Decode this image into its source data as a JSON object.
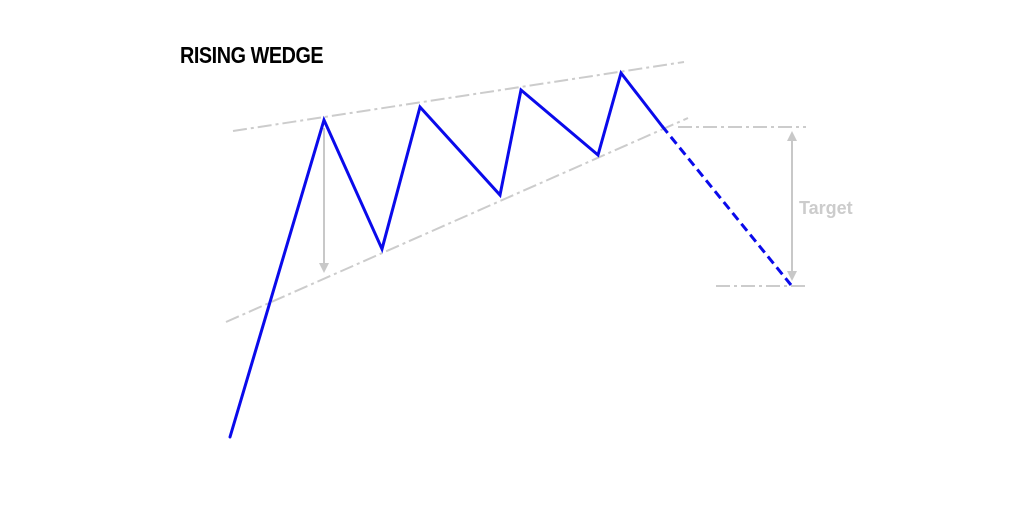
{
  "diagram": {
    "title": "RISING WEDGE",
    "target_label": "Target",
    "colors": {
      "price_line": "#0a0aeb",
      "trendline": "#cccccc",
      "arrow": "#c8c8c8",
      "title": "#000000",
      "target_label": "#cccccc"
    }
  }
}
